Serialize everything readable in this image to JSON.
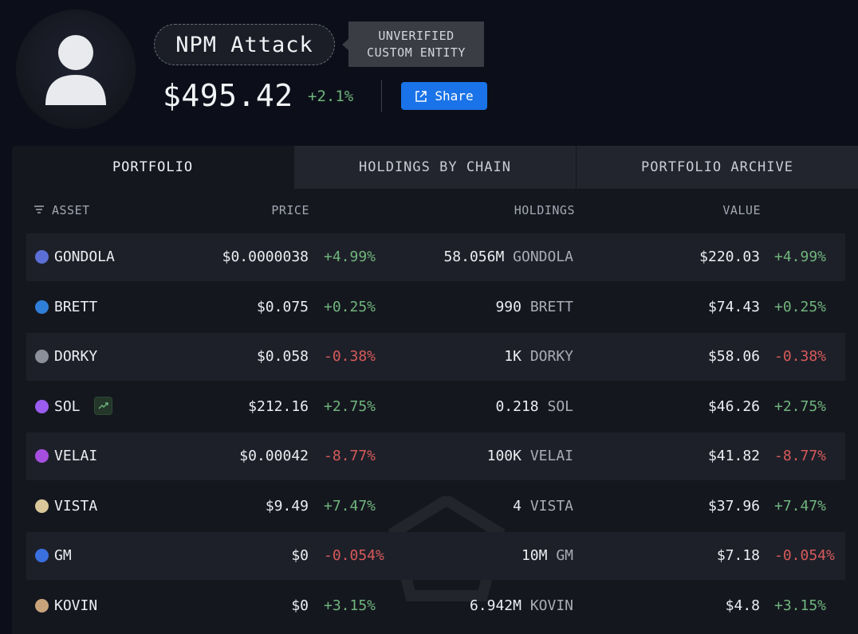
{
  "profile": {
    "name": "NPM Attack",
    "badge_line1": "UNVERIFIED",
    "badge_line2": "CUSTOM ENTITY",
    "total_value": "$495.42",
    "total_change": "+2.1%",
    "share_label": "Share"
  },
  "tabs": [
    {
      "label": "PORTFOLIO",
      "active": true
    },
    {
      "label": "HOLDINGS BY CHAIN",
      "active": false
    },
    {
      "label": "PORTFOLIO ARCHIVE",
      "active": false
    }
  ],
  "table": {
    "headers": {
      "asset": "ASSET",
      "price": "PRICE",
      "holdings": "HOLDINGS",
      "value": "VALUE"
    },
    "rows": [
      {
        "asset": "GONDOLA",
        "price": "$0.0000038",
        "price_change": "+4.99%",
        "amount": "58.056M",
        "unit": "GONDOLA",
        "value": "$220.03",
        "value_change": "+4.99%",
        "icon": "gondola-token-icon",
        "color": "#5b6fd6"
      },
      {
        "asset": "BRETT",
        "price": "$0.075",
        "price_change": "+0.25%",
        "amount": "990",
        "unit": "BRETT",
        "value": "$74.43",
        "value_change": "+0.25%",
        "icon": "brett-token-icon",
        "color": "#2f7fd8"
      },
      {
        "asset": "DORKY",
        "price": "$0.058",
        "price_change": "-0.38%",
        "amount": "1K",
        "unit": "DORKY",
        "value": "$58.06",
        "value_change": "-0.38%",
        "icon": "dorky-token-icon",
        "color": "#8a8f99"
      },
      {
        "asset": "SOL",
        "price": "$212.16",
        "price_change": "+2.75%",
        "amount": "0.218",
        "unit": "SOL",
        "value": "$46.26",
        "value_change": "+2.75%",
        "icon": "solana-token-icon",
        "color": "#9b5cf0"
      },
      {
        "asset": "VELAI",
        "price": "$0.00042",
        "price_change": "-8.77%",
        "amount": "100K",
        "unit": "VELAI",
        "value": "$41.82",
        "value_change": "-8.77%",
        "icon": "velai-token-icon",
        "color": "#a64ee0"
      },
      {
        "asset": "VISTA",
        "price": "$9.49",
        "price_change": "+7.47%",
        "amount": "4",
        "unit": "VISTA",
        "value": "$37.96",
        "value_change": "+7.47%",
        "icon": "ethereum-vista-icon",
        "color": "#d9c79a"
      },
      {
        "asset": "GM",
        "price": "$0",
        "price_change": "-0.054%",
        "amount": "10M",
        "unit": "GM",
        "value": "$7.18",
        "value_change": "-0.054%",
        "icon": "gm-token-icon",
        "color": "#3a6fe0"
      },
      {
        "asset": "KOVIN",
        "price": "$0",
        "price_change": "+3.15%",
        "amount": "6.942M",
        "unit": "KOVIN",
        "value": "$4.8",
        "value_change": "+3.15%",
        "icon": "kovin-token-icon",
        "color": "#c9a47a"
      }
    ]
  }
}
